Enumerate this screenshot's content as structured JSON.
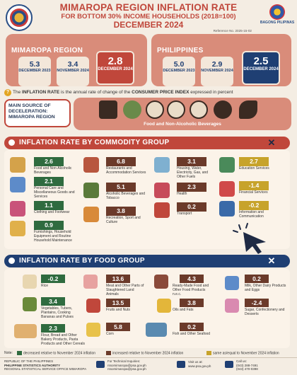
{
  "header": {
    "title": "MIMAROPA REGION INFLATION RATE",
    "subtitle": "FOR BOTTOM 30% INCOME HOUSEHOLDS (2018=100)",
    "period": "DECEMBER 2024",
    "reference": "Reference No. 2025-15-02",
    "logo_right_text": "BAGONG PILIPINAS"
  },
  "mimaropa": {
    "title": "MIMAROPA REGION",
    "boxes": [
      {
        "value": "5.3",
        "label": "DECEMBER 2023"
      },
      {
        "value": "3.4",
        "label": "NOVEMBER 2024"
      }
    ],
    "current": {
      "value": "2.8",
      "label": "DECEMBER 2024"
    }
  },
  "philippines": {
    "title": "PHILIPPINES",
    "boxes": [
      {
        "value": "5.0",
        "label": "DECEMBER 2023"
      },
      {
        "value": "2.9",
        "label": "NOVEMBER 2024"
      }
    ],
    "current": {
      "value": "2.5",
      "label": "DECEMBER 2024"
    }
  },
  "definition": {
    "q": "?",
    "pre": "The",
    "term": "INFLATION RATE",
    "mid": "is the annual rate of change of the",
    "term2": "CONSUMER PRICE INDEX",
    "post": "expressed in percent"
  },
  "deceleration": {
    "title": "MAIN SOURCE OF DECELERATION: MIMAROPA REGION",
    "label": "Food and Non-Alcoholic Beverages"
  },
  "commodity": {
    "title": "INFLATION RATE BY COMMODITY GROUP",
    "close": "✕",
    "items": [
      {
        "value": "2.6",
        "label": "Food and Non-Alcoholic Beverages",
        "status": "down"
      },
      {
        "value": "2.1",
        "label": "Personal Care and Miscellaneous Goods and Services",
        "status": "down"
      },
      {
        "value": "1.1",
        "label": "Clothing and Footwear",
        "status": "down"
      },
      {
        "value": "0.9",
        "label": "Furnishings, Household Equipment and Routine Household Maintenance",
        "status": "down"
      },
      {
        "value": "6.8",
        "label": "Restaurants and Accommodation Services",
        "status": "up"
      },
      {
        "value": "5.1",
        "label": "Alcoholic Beverages and Tobacco",
        "status": "up"
      },
      {
        "value": "3.8",
        "label": "Recreation, Sport and Culture",
        "status": "up"
      },
      {
        "value": "3.1",
        "label": "Housing, Water, Electricity, Gas, and Other Fuels",
        "status": "up"
      },
      {
        "value": "2.3",
        "label": "Health",
        "status": "up"
      },
      {
        "value": "0.2",
        "label": "Transport",
        "status": "up"
      },
      {
        "value": "2.7",
        "label": "Education Services",
        "status": "same"
      },
      {
        "value": "-1.4",
        "label": "Financial Services",
        "status": "same"
      },
      {
        "value": "-0.2",
        "label": "Information and Communication",
        "status": "same"
      }
    ]
  },
  "food": {
    "title": "INFLATION RATE BY FOOD GROUP",
    "close": "✕",
    "items": [
      {
        "value": "-0.2",
        "label": "Rice",
        "status": "down"
      },
      {
        "value": "3.4",
        "label": "Vegetables, Tubers, Plantains, Cooking Bananas and Pulses",
        "status": "down"
      },
      {
        "value": "2.3",
        "label": "Flour, Bread and Other Bakery Products, Pasta Products and Other Cereals",
        "status": "down"
      },
      {
        "value": "13.6",
        "label": "Meat and Other Parts of Slaughtered Land Animals",
        "status": "up"
      },
      {
        "value": "13.5",
        "label": "Fruits and Nuts",
        "status": "up"
      },
      {
        "value": "5.8",
        "label": "Corn",
        "status": "up"
      },
      {
        "value": "4.3",
        "label": "Ready-Made Food and Other Food Products n.e.c.",
        "status": "up"
      },
      {
        "value": "3.8",
        "label": "Oils and Fats",
        "status": "up"
      },
      {
        "value": "0.2",
        "label": "Fish and Other Seafood",
        "status": "up"
      },
      {
        "value": "0.2",
        "label": "Milk, Other Dairy Products and Eggs",
        "status": "up"
      },
      {
        "value": "-2.4",
        "label": "Sugar, Confectionery and Desserts",
        "status": "up"
      }
    ]
  },
  "legend": {
    "prefix": "Note:",
    "items": [
      {
        "label": "decreased relative to November 2024 inflation",
        "color": "#2f6b3f"
      },
      {
        "label": "increased relative to November 2024 inflation",
        "color": "#6b3a2a"
      },
      {
        "label": "same as/equal to November 2024 inflation",
        "color": "#c7a32b"
      }
    ]
  },
  "footer": {
    "org1": "REPUBLIC OF THE PHILIPPINES",
    "org2": "PHILIPPINE STATISTICS AUTHORITY",
    "org3": "REGIONAL STATISTICAL SERVICE OFFICE MIMAROPA",
    "email_label": "For Technical Inquiries:",
    "email1": "rssomimaropa@psa.gov.ph",
    "email2": "rssomimaropa@psa.gov.ph",
    "web_label": "Visit us at:",
    "web": "www.psa.gov.ph",
    "phone_label": "Call us:",
    "phone1": "(043) 288-7491",
    "phone2": "(043) 470-0398"
  },
  "colors": {
    "red": "#c0473b",
    "navy": "#1f3f73",
    "decreased": "#2f6b3f",
    "increased": "#6b3a2a",
    "same": "#c7a32b"
  }
}
